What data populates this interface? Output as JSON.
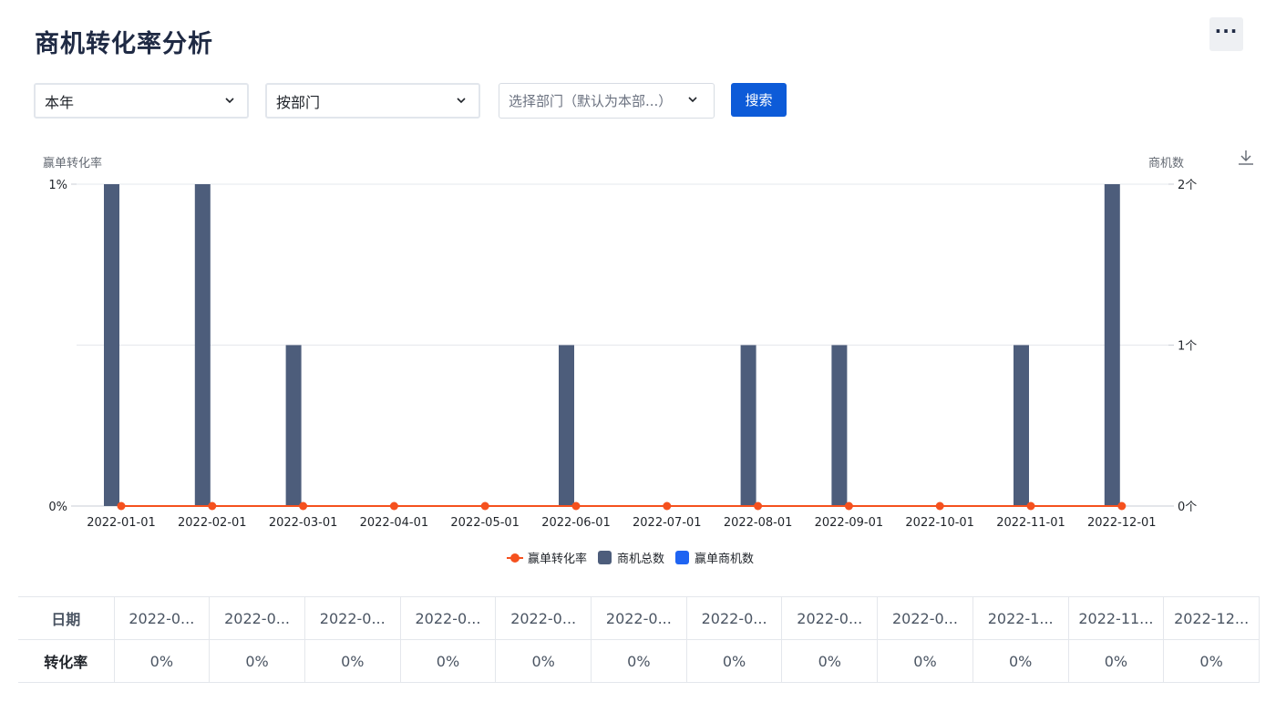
{
  "page": {
    "title": "商机转化率分析",
    "more_icon": "more-horizontal-icon"
  },
  "filters": {
    "period": {
      "value": "本年"
    },
    "group_by": {
      "value": "按部门"
    },
    "department": {
      "placeholder": "选择部门（默认为本部...）"
    },
    "search_label": "搜索"
  },
  "colors": {
    "bar": "#4d5d7b",
    "line": "#f5511e",
    "win_opps": "#1f64f2",
    "primary_button": "#0d5bd8"
  },
  "chart_data": {
    "type": "bar",
    "categories": [
      "2022-01-01",
      "2022-02-01",
      "2022-03-01",
      "2022-04-01",
      "2022-05-01",
      "2022-06-01",
      "2022-07-01",
      "2022-08-01",
      "2022-09-01",
      "2022-10-01",
      "2022-11-01",
      "2022-12-01"
    ],
    "ylabel_left": "赢单转化率",
    "ylabel_right": "商机数",
    "y_left_ticks": [
      "0%",
      "1%"
    ],
    "y_right_ticks": [
      "0个",
      "1个",
      "2个"
    ],
    "y_right_range": [
      0,
      2
    ],
    "y_left_range": [
      0,
      1
    ],
    "grid": true,
    "legend_position": "bottom",
    "series": [
      {
        "name": "赢单转化率",
        "type": "line",
        "axis": "left",
        "values": [
          0,
          0,
          0,
          0,
          0,
          0,
          0,
          0,
          0,
          0,
          0,
          0
        ]
      },
      {
        "name": "商机总数",
        "type": "bar",
        "axis": "right",
        "values": [
          2,
          2,
          1,
          0,
          0,
          1,
          0,
          1,
          1,
          0,
          1,
          2
        ]
      },
      {
        "name": "赢单商机数",
        "type": "bar",
        "axis": "right",
        "values": [
          0,
          0,
          0,
          0,
          0,
          0,
          0,
          0,
          0,
          0,
          0,
          0
        ]
      }
    ],
    "download_icon": "download-icon"
  },
  "table": {
    "row_headers": [
      "日期",
      "转化率"
    ],
    "dates": [
      "2022-0...",
      "2022-0...",
      "2022-0...",
      "2022-0...",
      "2022-0...",
      "2022-0...",
      "2022-0...",
      "2022-0...",
      "2022-0...",
      "2022-1...",
      "2022-11...",
      "2022-12..."
    ],
    "rates": [
      "0%",
      "0%",
      "0%",
      "0%",
      "0%",
      "0%",
      "0%",
      "0%",
      "0%",
      "0%",
      "0%",
      "0%"
    ]
  }
}
